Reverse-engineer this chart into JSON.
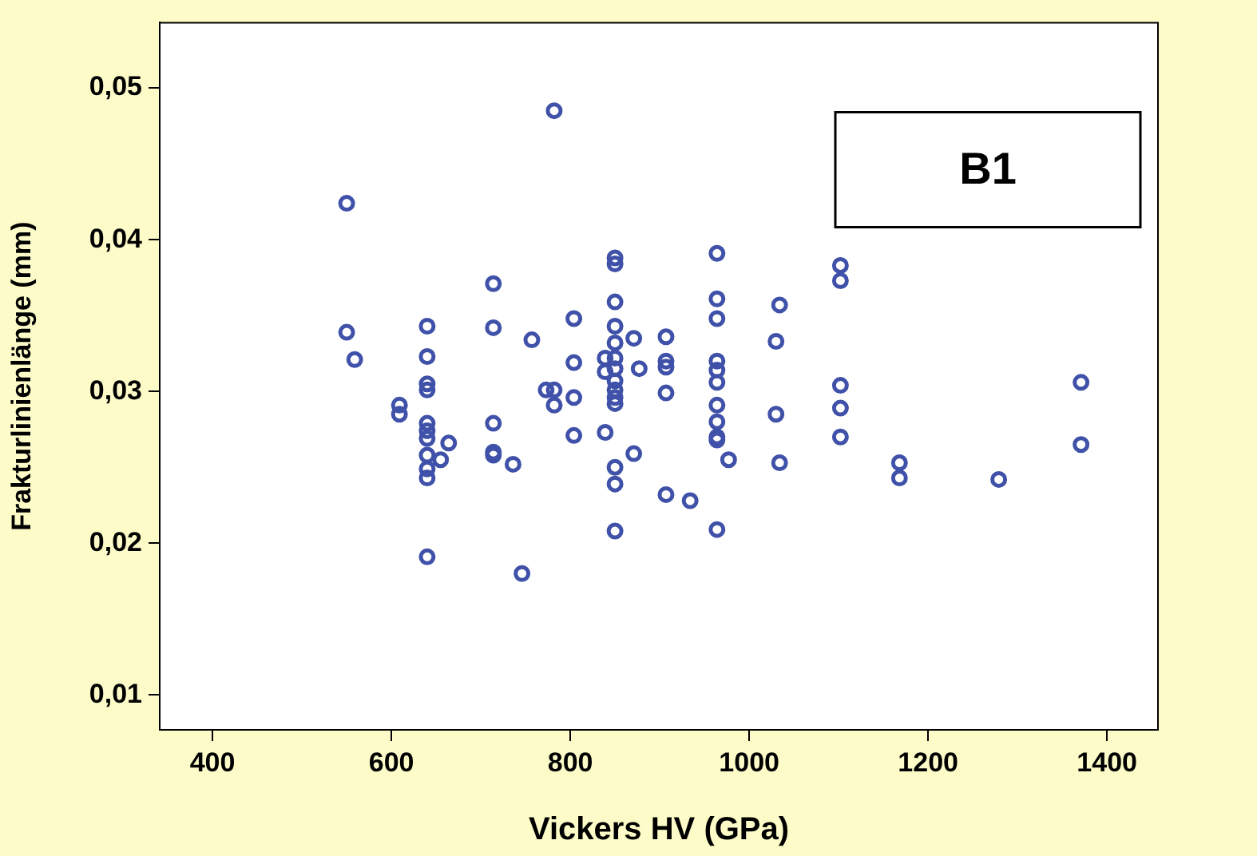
{
  "chart_data": {
    "type": "scatter",
    "xlabel": "Vickers HV (GPa)",
    "ylabel": "Frakturlinienlänge (mm)",
    "annotations": [
      "B1"
    ],
    "xlim": [
      341,
      1457
    ],
    "ylim": [
      0.0077,
      0.0543
    ],
    "xticks": [
      400,
      600,
      800,
      1000,
      1200,
      1400
    ],
    "yticks": [
      {
        "value": 0.01,
        "label": "0,01"
      },
      {
        "value": 0.02,
        "label": "0,02"
      },
      {
        "value": 0.03,
        "label": "0,03"
      },
      {
        "value": 0.04,
        "label": "0,04"
      },
      {
        "value": 0.05,
        "label": "0,05"
      }
    ],
    "marker": "circle",
    "grid": false,
    "legend": false,
    "series": [
      {
        "color": "#3f51a8",
        "x": [
          550,
          550,
          559,
          609,
          609,
          640,
          640,
          640,
          640,
          640,
          640,
          640,
          640,
          640,
          640,
          640,
          664,
          655,
          714,
          714,
          714,
          714,
          714,
          736,
          757,
          746,
          782,
          773,
          782,
          782,
          804,
          804,
          804,
          804,
          839,
          839,
          839,
          850,
          850,
          850,
          850,
          850,
          850,
          850,
          850,
          850,
          850,
          850,
          850,
          850,
          850,
          871,
          877,
          871,
          907,
          907,
          907,
          907,
          907,
          934,
          964,
          964,
          964,
          964,
          964,
          964,
          964,
          964,
          964,
          964,
          964,
          977,
          1034,
          1030,
          1030,
          1034,
          1102,
          1102,
          1102,
          1102,
          1102,
          1168,
          1168,
          1279,
          1371,
          1371
        ],
        "values": [
          0.0424,
          0.0339,
          0.0321,
          0.0291,
          0.0285,
          0.0343,
          0.0323,
          0.0305,
          0.0301,
          0.0279,
          0.0274,
          0.0269,
          0.0258,
          0.0249,
          0.0243,
          0.0191,
          0.0266,
          0.0255,
          0.0371,
          0.0342,
          0.0279,
          0.026,
          0.0258,
          0.0252,
          0.0334,
          0.018,
          0.0485,
          0.0301,
          0.0301,
          0.0291,
          0.0348,
          0.0319,
          0.0296,
          0.0271,
          0.0322,
          0.0313,
          0.0273,
          0.0388,
          0.0384,
          0.0359,
          0.0343,
          0.0332,
          0.0322,
          0.0315,
          0.0307,
          0.0301,
          0.0296,
          0.0292,
          0.025,
          0.0239,
          0.0208,
          0.0335,
          0.0315,
          0.0259,
          0.0336,
          0.032,
          0.0316,
          0.0299,
          0.0232,
          0.0228,
          0.0391,
          0.0361,
          0.0348,
          0.032,
          0.0314,
          0.0306,
          0.0291,
          0.028,
          0.027,
          0.0268,
          0.0209,
          0.0255,
          0.0357,
          0.0333,
          0.0285,
          0.0253,
          0.0383,
          0.0373,
          0.0304,
          0.0289,
          0.027,
          0.0253,
          0.0243,
          0.0242,
          0.0306,
          0.0265
        ]
      }
    ]
  }
}
